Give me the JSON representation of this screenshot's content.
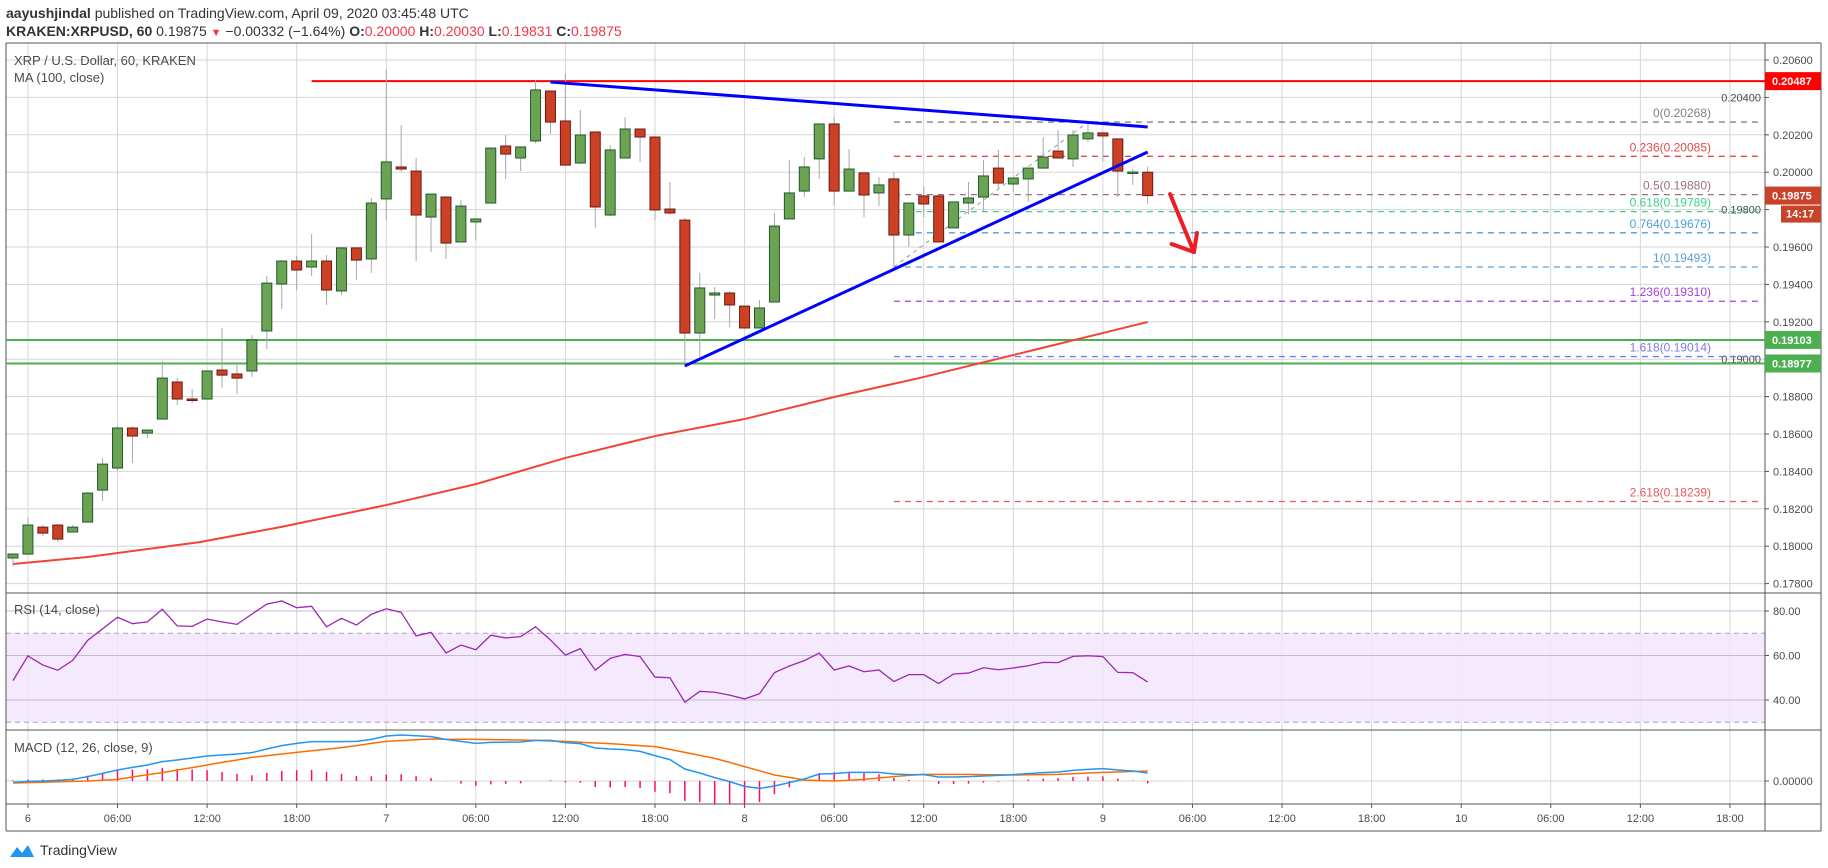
{
  "header": {
    "author": "aayushjindal",
    "published": "published on TradingView.com, April 09, 2020 03:45:48 UTC",
    "symbol": "KRAKEN:XRPUSD, 60",
    "last": "0.19875",
    "change": "−0.00332 (−1.64%)",
    "o_label": "O:",
    "o": "0.20000",
    "h_label": "H:",
    "h": "0.20030",
    "l_label": "L:",
    "l": "0.19831",
    "c_label": "C:",
    "c": "0.19875"
  },
  "logo": {
    "text": "TradingView"
  },
  "colors": {
    "up": "#6ba353",
    "up_border": "#1f5a2e",
    "down": "#cc4125",
    "down_border": "#6b1a10",
    "wick": "#a8a8a8",
    "grid": "#d6d6d6",
    "ma": "#f44336",
    "trend": "#0000ff",
    "resistance": "#ff0000",
    "support": "#4caf50",
    "rsi": "#9c27b0",
    "rsi_band": "#f3e5fd",
    "macd": "#2196f3",
    "signal": "#ff6d00",
    "hist": "#ff0a6c",
    "arrow": "#ee1c24"
  },
  "chart_data": {
    "type": "candlestick",
    "title": "XRP / U.S. Dollar, 60, KRAKEN",
    "ma_legend": "MA (100, close)",
    "x_unit": "hours since Apr 5 23:00 (hourly candles)",
    "ylim": [
      0.1775,
      0.2069
    ],
    "y_ticks": [
      "0.20600",
      "0.20400",
      "0.20200",
      "0.20000",
      "0.19800",
      "0.19600",
      "0.19400",
      "0.19200",
      "0.19000",
      "0.18800",
      "0.18600",
      "0.18400",
      "0.18200",
      "0.18000",
      "0.17800"
    ],
    "x_ticks": [
      {
        "h": 1,
        "label": "6"
      },
      {
        "h": 7,
        "label": "06:00"
      },
      {
        "h": 13,
        "label": "12:00"
      },
      {
        "h": 19,
        "label": "18:00"
      },
      {
        "h": 25,
        "label": "7"
      },
      {
        "h": 31,
        "label": "06:00"
      },
      {
        "h": 37,
        "label": "12:00"
      },
      {
        "h": 43,
        "label": "18:00"
      },
      {
        "h": 49,
        "label": "8"
      },
      {
        "h": 55,
        "label": "06:00"
      },
      {
        "h": 61,
        "label": "12:00"
      },
      {
        "h": 67,
        "label": "18:00"
      },
      {
        "h": 73,
        "label": "9"
      },
      {
        "h": 79,
        "label": "06:00"
      },
      {
        "h": 85,
        "label": "12:00"
      },
      {
        "h": 91,
        "label": "18:00"
      },
      {
        "h": 97,
        "label": "10"
      },
      {
        "h": 103,
        "label": "06:00"
      },
      {
        "h": 109,
        "label": "12:00"
      },
      {
        "h": 115,
        "label": "18:00"
      }
    ],
    "candles_ohlc": [
      [
        0.17937,
        0.17958,
        0.17894,
        0.17958
      ],
      [
        0.17958,
        0.18151,
        0.17953,
        0.18113
      ],
      [
        0.18102,
        0.18113,
        0.18054,
        0.1807
      ],
      [
        0.18113,
        0.18119,
        0.18022,
        0.18038
      ],
      [
        0.18076,
        0.18113,
        0.18076,
        0.18102
      ],
      [
        0.18129,
        0.1829,
        0.18129,
        0.18284
      ],
      [
        0.183,
        0.18472,
        0.18242,
        0.18439
      ],
      [
        0.18418,
        0.18643,
        0.18402,
        0.18632
      ],
      [
        0.18632,
        0.18643,
        0.18445,
        0.18589
      ],
      [
        0.18605,
        0.18621,
        0.18578,
        0.18621
      ],
      [
        0.1868,
        0.1899,
        0.1868,
        0.18899
      ],
      [
        0.18878,
        0.18899,
        0.18755,
        0.18787
      ],
      [
        0.18787,
        0.18841,
        0.18766,
        0.18782
      ],
      [
        0.18787,
        0.18937,
        0.18787,
        0.18937
      ],
      [
        0.18942,
        0.19167,
        0.18846,
        0.18915
      ],
      [
        0.18921,
        0.18985,
        0.18814,
        0.18899
      ],
      [
        0.18937,
        0.19129,
        0.18905,
        0.19103
      ],
      [
        0.19151,
        0.19445,
        0.19054,
        0.19407
      ],
      [
        0.19402,
        0.1953,
        0.19268,
        0.19525
      ],
      [
        0.19525,
        0.19552,
        0.1937,
        0.19477
      ],
      [
        0.19493,
        0.19669,
        0.19445,
        0.19525
      ],
      [
        0.19525,
        0.19557,
        0.1929,
        0.1937
      ],
      [
        0.19365,
        0.196,
        0.19343,
        0.19595
      ],
      [
        0.19595,
        0.19595,
        0.19423,
        0.1953
      ],
      [
        0.19536,
        0.19862,
        0.19461,
        0.19835
      ],
      [
        0.19857,
        0.20547,
        0.19744,
        0.20055
      ],
      [
        0.20028,
        0.20252,
        0.20001,
        0.20017
      ],
      [
        0.20006,
        0.20076,
        0.19525,
        0.19771
      ],
      [
        0.1976,
        0.19883,
        0.19573,
        0.19883
      ],
      [
        0.19867,
        0.19873,
        0.19536,
        0.19621
      ],
      [
        0.19627,
        0.19851,
        0.19627,
        0.19819
      ],
      [
        0.19734,
        0.1975,
        0.19637,
        0.1975
      ],
      [
        0.19835,
        0.20129,
        0.19835,
        0.20129
      ],
      [
        0.2014,
        0.20199,
        0.19964,
        0.20097
      ],
      [
        0.20076,
        0.20135,
        0.20006,
        0.20135
      ],
      [
        0.20167,
        0.20493,
        0.20156,
        0.2044
      ],
      [
        0.20434,
        0.20434,
        0.20204,
        0.20268
      ],
      [
        0.20274,
        0.2053,
        0.20038,
        0.20038
      ],
      [
        0.20049,
        0.20333,
        0.20049,
        0.20199
      ],
      [
        0.20215,
        0.20215,
        0.19702,
        0.19814
      ],
      [
        0.19771,
        0.20145,
        0.19766,
        0.20119
      ],
      [
        0.20076,
        0.20295,
        0.20076,
        0.20231
      ],
      [
        0.20231,
        0.20231,
        0.20055,
        0.20188
      ],
      [
        0.20188,
        0.20188,
        0.19744,
        0.19798
      ],
      [
        0.19803,
        0.19948,
        0.19771,
        0.19782
      ],
      [
        0.19744,
        0.19755,
        0.18958,
        0.1914
      ],
      [
        0.1914,
        0.19461,
        0.19012,
        0.19381
      ],
      [
        0.19343,
        0.19386,
        0.19215,
        0.19354
      ],
      [
        0.19354,
        0.19365,
        0.19172,
        0.1929
      ],
      [
        0.19284,
        0.19284,
        0.19167,
        0.19167
      ],
      [
        0.19167,
        0.19316,
        0.19167,
        0.19274
      ],
      [
        0.19306,
        0.19782,
        0.19306,
        0.19712
      ],
      [
        0.1975,
        0.20065,
        0.1975,
        0.19889
      ],
      [
        0.19899,
        0.20081,
        0.19867,
        0.20028
      ],
      [
        0.20071,
        0.20258,
        0.19964,
        0.20258
      ],
      [
        0.20258,
        0.20295,
        0.19825,
        0.19899
      ],
      [
        0.19899,
        0.20124,
        0.19899,
        0.20017
      ],
      [
        0.19996,
        0.19996,
        0.1976,
        0.19878
      ],
      [
        0.19889,
        0.19974,
        0.19819,
        0.19932
      ],
      [
        0.19964,
        0.20001,
        0.19493,
        0.19664
      ],
      [
        0.19664,
        0.19835,
        0.196,
        0.19835
      ],
      [
        0.19873,
        0.19921,
        0.1976,
        0.1983
      ],
      [
        0.19873,
        0.19873,
        0.19627,
        0.19627
      ],
      [
        0.19702,
        0.19841,
        0.19702,
        0.19841
      ],
      [
        0.19835,
        0.19948,
        0.19776,
        0.19862
      ],
      [
        0.19867,
        0.20065,
        0.19787,
        0.1998
      ],
      [
        0.20022,
        0.20119,
        0.19915,
        0.19942
      ],
      [
        0.19937,
        0.19969,
        0.19894,
        0.19969
      ],
      [
        0.19964,
        0.20022,
        0.19841,
        0.20022
      ],
      [
        0.20022,
        0.20188,
        0.20022,
        0.20081
      ],
      [
        0.20113,
        0.20226,
        0.20076,
        0.20076
      ],
      [
        0.20071,
        0.20226,
        0.20028,
        0.20199
      ],
      [
        0.20178,
        0.20268,
        0.20161,
        0.2021
      ],
      [
        0.2021,
        0.2021,
        0.2006,
        0.20194
      ],
      [
        0.20178,
        0.20178,
        0.19867,
        0.20006
      ],
      [
        0.2,
        0.20017,
        0.19932,
        0.20001
      ],
      [
        0.2,
        0.2003,
        0.19831,
        0.19875
      ]
    ],
    "ma100": [
      [
        0,
        0.17905
      ],
      [
        5,
        0.17942
      ],
      [
        12.5,
        0.18022
      ],
      [
        17.9,
        0.18102
      ],
      [
        25,
        0.1822
      ],
      [
        31,
        0.18332
      ],
      [
        37,
        0.18472
      ],
      [
        43,
        0.18589
      ],
      [
        49,
        0.1868
      ],
      [
        55,
        0.18798
      ],
      [
        60.7,
        0.18899
      ],
      [
        68.1,
        0.19044
      ],
      [
        76,
        0.19199
      ]
    ],
    "horizontal_lines": [
      {
        "name": "resistance-line",
        "price": 0.20487,
        "from_h": 20,
        "label": "0.20487",
        "color": "#ff0000"
      },
      {
        "name": "support-line-upper",
        "price": 0.19103,
        "from_h": -1,
        "label": "0.19103",
        "color": "#4caf50"
      },
      {
        "name": "support-line-lower",
        "price": 0.18977,
        "from_h": -1,
        "label": "0.18977",
        "color": "#4caf50"
      }
    ],
    "trend_lines": [
      {
        "name": "descending-trendline",
        "from": [
          36,
          0.20482
        ],
        "to": [
          76,
          0.20242
        ]
      },
      {
        "name": "ascending-trendline",
        "from": [
          45,
          0.18964
        ],
        "to": [
          76,
          0.20108
        ]
      }
    ],
    "fib_anchor": {
      "from": [
        59,
        0.19493
      ],
      "to": [
        72,
        0.20268
      ]
    },
    "fib_start_h": 59,
    "fib_levels": [
      {
        "ratio": "0",
        "value": 0.20268,
        "label": "0(0.20268)",
        "color": "#808080"
      },
      {
        "ratio": "0.236",
        "value": 0.20085,
        "label": "0.236(0.20085)",
        "color": "#e5484d"
      },
      {
        "ratio": "0.5",
        "value": 0.1988,
        "label": "0.5(0.19880)",
        "color": "#9a6f86"
      },
      {
        "ratio": "0.618",
        "value": 0.19789,
        "label": "0.618(0.19789)",
        "color": "#3fcf8e"
      },
      {
        "ratio": "0.764",
        "value": 0.19676,
        "label": "0.764(0.19676)",
        "color": "#4a9fd8"
      },
      {
        "ratio": "1",
        "value": 0.19493,
        "label": "1(0.19493)",
        "color": "#5a9fd6"
      },
      {
        "ratio": "1.236",
        "value": 0.1931,
        "label": "1.236(0.19310)",
        "color": "#a43fe0"
      },
      {
        "ratio": "1.618",
        "value": 0.19014,
        "label": "1.618(0.19014)",
        "color": "#7b7be6"
      },
      {
        "ratio": "2.618",
        "value": 0.18239,
        "label": "2.618(0.18239)",
        "color": "#e05a5e"
      }
    ],
    "arrow": {
      "from": [
        77.5,
        0.19883
      ],
      "to": [
        79.1,
        0.19573
      ],
      "wing1": [
        77.6,
        0.19616
      ],
      "wing2": [
        79.3,
        0.19675
      ]
    },
    "last_price": {
      "label": "0.19875",
      "value": 0.19875,
      "countdown": "14:17",
      "color": "#c9432b"
    },
    "rsi": {
      "legend": "RSI (14, close)",
      "ticks": [
        "80.00",
        "60.00",
        "40.00"
      ],
      "upper": 70,
      "lower": 30,
      "values": [
        48.7,
        59.8,
        55.7,
        53.4,
        57.8,
        66.8,
        72.0,
        77.2,
        74.3,
        75.1,
        80.8,
        73.3,
        73.1,
        76.4,
        75.1,
        74.0,
        78.6,
        83.1,
        84.5,
        81.5,
        82.1,
        72.9,
        76.7,
        73.7,
        78.5,
        81.0,
        79.4,
        68.8,
        70.4,
        61.1,
        64.7,
        62.6,
        69.1,
        67.9,
        68.5,
        72.9,
        67.0,
        60.2,
        63.1,
        53.4,
        58.7,
        60.5,
        59.5,
        50.3,
        50.0,
        39.0,
        43.9,
        43.5,
        42.2,
        40.5,
        42.8,
        52.3,
        55.3,
        57.7,
        61.1,
        53.5,
        55.3,
        52.7,
        53.5,
        48.3,
        51.4,
        51.4,
        47.4,
        51.7,
        52.1,
        54.5,
        53.6,
        54.4,
        55.4,
        56.9,
        56.8,
        59.6,
        59.9,
        59.5,
        52.4,
        52.3,
        48.1
      ]
    },
    "macd": {
      "legend": "MACD (12, 26, close, 9)",
      "ticks": [
        "0.00000"
      ],
      "macd": [
        -7e-05,
        -2e-05,
        0,
        3e-05,
        8e-05,
        0.00022,
        0.00038,
        0.00055,
        0.00068,
        0.0008,
        0.00097,
        0.00105,
        0.00115,
        0.00125,
        0.0013,
        0.00135,
        0.00142,
        0.0016,
        0.00177,
        0.00188,
        0.00197,
        0.00197,
        0.00197,
        0.00198,
        0.00208,
        0.00225,
        0.0023,
        0.00226,
        0.00222,
        0.00208,
        0.00198,
        0.00188,
        0.00193,
        0.00194,
        0.00195,
        0.00203,
        0.00203,
        0.00192,
        0.00187,
        0.00165,
        0.0016,
        0.00157,
        0.00148,
        0.00127,
        0.00107,
        0.0006,
        0.0004,
        0.00017,
        -3e-05,
        -0.00027,
        -0.00037,
        -0.00025,
        -8e-05,
        0.0001,
        0.00035,
        0.00037,
        0.00043,
        0.00043,
        0.00043,
        0.00035,
        0.00032,
        0.00032,
        0.0002,
        0.0002,
        0.00022,
        0.00025,
        0.00028,
        0.00032,
        0.00037,
        0.00042,
        0.00045,
        0.00053,
        0.00058,
        0.00062,
        0.00055,
        0.0005,
        0.0004
      ],
      "signal": [
        -0.0001,
        -8e-05,
        -6e-05,
        -4e-05,
        -2e-05,
        0,
        4e-05,
        8e-05,
        0.0002,
        0.00031,
        0.00042,
        0.00055,
        0.00067,
        0.0008,
        0.00093,
        0.00105,
        0.00118,
        0.00126,
        0.00135,
        0.00143,
        0.00151,
        0.00159,
        0.00167,
        0.00177,
        0.00188,
        0.00198,
        0.00202,
        0.00206,
        0.0021,
        0.00209,
        0.00209,
        0.00208,
        0.00207,
        0.00206,
        0.00205,
        0.00203,
        0.002,
        0.00198,
        0.00194,
        0.0019,
        0.00187,
        0.00182,
        0.00177,
        0.00172,
        0.00158,
        0.00143,
        0.00128,
        0.00113,
        0.00093,
        0.00072,
        0.00051,
        0.0003,
        0.00018,
        5e-05,
        2e-05,
        0,
        4e-05,
        8e-05,
        0.00015,
        0.00022,
        0.00028,
        0.00033,
        0.00033,
        0.00033,
        0.00033,
        0.00032,
        0.00031,
        0.0003,
        0.00031,
        0.00032,
        0.00033,
        0.00036,
        0.0004,
        0.00043,
        0.00045,
        0.00048,
        0.0005
      ]
    }
  }
}
